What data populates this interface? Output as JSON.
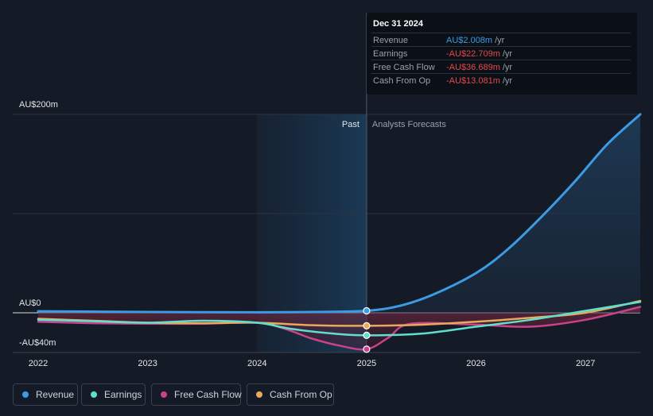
{
  "chart_data": {
    "type": "line",
    "y_axis_labels": [
      {
        "text": "AU$200m",
        "value": 200
      },
      {
        "text": "AU$0",
        "value": 0
      },
      {
        "text": "-AU$40m",
        "value": -40
      }
    ],
    "x_ticks": [
      "2022",
      "2023",
      "2024",
      "2025",
      "2026",
      "2027"
    ],
    "ylim": [
      -40,
      200
    ],
    "past_label": "Past",
    "forecast_label": "Analysts Forecasts",
    "divider_x": 2025.0,
    "highlight_range": [
      2024.0,
      2025.0
    ],
    "grid": true,
    "series": [
      {
        "name": "Revenue",
        "color": "#3b9be4",
        "fill": true,
        "x": [
          2022.0,
          2022.5,
          2023.0,
          2023.5,
          2024.0,
          2024.5,
          2025.0,
          2025.3,
          2025.6,
          2026.0,
          2026.3,
          2026.6,
          2026.9,
          2027.2,
          2027.5
        ],
        "y": [
          1.5,
          1.2,
          0.8,
          0.6,
          0.5,
          0.8,
          2.0,
          7,
          18,
          40,
          65,
          97,
          132,
          170,
          200
        ]
      },
      {
        "name": "Earnings",
        "color": "#5fe0cf",
        "x": [
          2022.0,
          2022.5,
          2023.0,
          2023.5,
          2024.0,
          2024.3,
          2024.7,
          2025.0,
          2025.5,
          2026.0,
          2026.5,
          2027.0,
          2027.5
        ],
        "y": [
          -7,
          -8.5,
          -10,
          -8,
          -10,
          -16,
          -21,
          -22.7,
          -21,
          -14,
          -7,
          2,
          11
        ]
      },
      {
        "name": "Free Cash Flow",
        "color": "#c9428a",
        "x": [
          2022.0,
          2022.5,
          2023.0,
          2023.5,
          2024.0,
          2024.25,
          2024.5,
          2024.75,
          2025.0,
          2025.2,
          2025.4,
          2026.0,
          2026.5,
          2027.0,
          2027.5
        ],
        "y": [
          -9,
          -10.5,
          -11,
          -11,
          -10,
          -16,
          -26,
          -33,
          -36.7,
          -25,
          -11,
          -12,
          -14,
          -7,
          6
        ]
      },
      {
        "name": "Cash From Op",
        "color": "#e8a95a",
        "x": [
          2022.0,
          2022.5,
          2023.0,
          2023.5,
          2024.0,
          2024.5,
          2025.0,
          2025.5,
          2026.0,
          2026.5,
          2027.0,
          2027.5
        ],
        "y": [
          -6,
          -8,
          -10,
          -10.5,
          -10,
          -12.5,
          -13.1,
          -12,
          -9,
          -5,
          0,
          12
        ]
      }
    ],
    "highlight_points": [
      {
        "series": "Revenue",
        "x": 2025.0,
        "y": 2.008
      },
      {
        "series": "Earnings",
        "x": 2025.0,
        "y": -22.709
      },
      {
        "series": "Free Cash Flow",
        "x": 2025.0,
        "y": -36.689
      },
      {
        "series": "Cash From Op",
        "x": 2025.0,
        "y": -13.081
      }
    ]
  },
  "tooltip": {
    "title": "Dec 31 2024",
    "rows": [
      {
        "label": "Revenue",
        "value": "AU$2.008m",
        "unit": "/yr",
        "color": "#3b9be4"
      },
      {
        "label": "Earnings",
        "value": "-AU$22.709m",
        "unit": "/yr",
        "color": "#e5484d"
      },
      {
        "label": "Free Cash Flow",
        "value": "-AU$36.689m",
        "unit": "/yr",
        "color": "#e5484d"
      },
      {
        "label": "Cash From Op",
        "value": "-AU$13.081m",
        "unit": "/yr",
        "color": "#e5484d"
      }
    ]
  },
  "legend": [
    {
      "label": "Revenue",
      "color": "#3b9be4"
    },
    {
      "label": "Earnings",
      "color": "#5fe0cf"
    },
    {
      "label": "Free Cash Flow",
      "color": "#c9428a"
    },
    {
      "label": "Cash From Op",
      "color": "#e8a95a"
    }
  ]
}
